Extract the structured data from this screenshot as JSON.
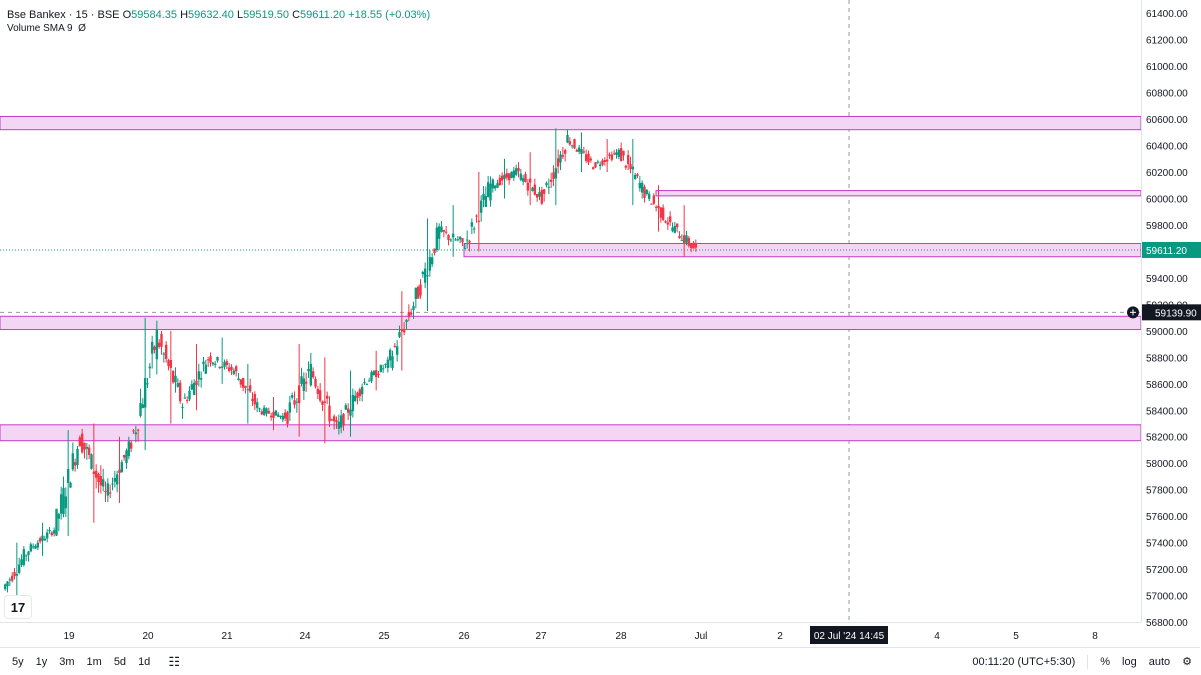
{
  "header": {
    "symbol": "Bse Bankex · 15 · BSE",
    "o_label": "O",
    "o_value": "59584.35",
    "h_label": "H",
    "h_value": "59632.40",
    "l_label": "L",
    "l_value": "59519.50",
    "c_label": "C",
    "c_value": "59611.20",
    "change": "+18.55 (+0.03%)",
    "indicator": "Volume SMA 9",
    "indicator_value": "Ø"
  },
  "colors": {
    "up": "#089981",
    "down": "#f23645",
    "zone_fill": "#f3d6f3",
    "zone_stroke": "#c73cc7",
    "last_price_bg": "#089981",
    "crosshair_bg": "#131722"
  },
  "chart_data": {
    "type": "candlestick",
    "ylim": [
      56800,
      61500
    ],
    "yticks": [
      "61400.00",
      "61200.00",
      "61000.00",
      "60800.00",
      "60600.00",
      "60400.00",
      "60200.00",
      "60000.00",
      "59800.00",
      "59400.00",
      "59200.00",
      "59000.00",
      "58800.00",
      "58600.00",
      "58400.00",
      "58200.00",
      "58000.00",
      "57800.00",
      "57600.00",
      "57400.00",
      "57200.00",
      "57000.00",
      "56800.00"
    ],
    "xticks": [
      "19",
      "20",
      "21",
      "24",
      "25",
      "26",
      "27",
      "28",
      "Jul",
      "2",
      "4",
      "5",
      "8"
    ],
    "last_price": {
      "value": 59611.2,
      "label": "59611.20"
    },
    "crosshair": {
      "price": 59139.9,
      "price_label": "59139.90",
      "time_label": "02 Jul '24   14:45"
    },
    "zones": [
      {
        "from": 60520,
        "to": 60620,
        "start": "left-edge"
      },
      {
        "from": 60020,
        "to": 60060,
        "start": "28"
      },
      {
        "from": 59560,
        "to": 59660,
        "start": "26"
      },
      {
        "from": 59010,
        "to": 59110,
        "start": "left-edge"
      },
      {
        "from": 58170,
        "to": 58290,
        "start": "left-edge"
      }
    ],
    "sessions": [
      {
        "day": "18",
        "open": 57050,
        "close": 57350,
        "low": 56950,
        "high": 57400
      },
      {
        "day": "18b",
        "open": 57350,
        "close": 57500,
        "low": 57300,
        "high": 57550
      },
      {
        "day": "19a",
        "open": 57500,
        "close": 58200,
        "low": 57450,
        "high": 58250
      },
      {
        "day": "19b",
        "open": 58200,
        "close": 57750,
        "low": 57550,
        "high": 58300
      },
      {
        "day": "19c",
        "open": 57750,
        "close": 58150,
        "low": 57700,
        "high": 58200
      },
      {
        "day": "20a",
        "open": 58150,
        "close": 58950,
        "low": 58100,
        "high": 59100
      },
      {
        "day": "20b",
        "open": 58950,
        "close": 58450,
        "low": 58300,
        "high": 59000
      },
      {
        "day": "20c",
        "open": 58450,
        "close": 58800,
        "low": 58400,
        "high": 58900
      },
      {
        "day": "21a",
        "open": 58800,
        "close": 58700,
        "low": 58600,
        "high": 58950
      },
      {
        "day": "21b",
        "open": 58700,
        "close": 58400,
        "low": 58300,
        "high": 58750
      },
      {
        "day": "21c",
        "open": 58400,
        "close": 58350,
        "low": 58250,
        "high": 58500
      },
      {
        "day": "24a",
        "open": 58350,
        "close": 58700,
        "low": 58200,
        "high": 58900
      },
      {
        "day": "24b",
        "open": 58700,
        "close": 58250,
        "low": 58150,
        "high": 58800
      },
      {
        "day": "24c",
        "open": 58250,
        "close": 58600,
        "low": 58200,
        "high": 58700
      },
      {
        "day": "25a",
        "open": 58600,
        "close": 58750,
        "low": 58550,
        "high": 58850
      },
      {
        "day": "25b",
        "open": 58750,
        "close": 59200,
        "low": 58700,
        "high": 59300
      },
      {
        "day": "25c",
        "open": 59200,
        "close": 59750,
        "low": 59150,
        "high": 59850
      },
      {
        "day": "26a",
        "open": 59750,
        "close": 59650,
        "low": 59560,
        "high": 59950
      },
      {
        "day": "26b",
        "open": 59650,
        "close": 60100,
        "low": 59600,
        "high": 60200
      },
      {
        "day": "26c",
        "open": 60100,
        "close": 60200,
        "low": 60000,
        "high": 60300
      },
      {
        "day": "27a",
        "open": 60200,
        "close": 60000,
        "low": 59950,
        "high": 60350
      },
      {
        "day": "27b",
        "open": 60000,
        "close": 60450,
        "low": 59950,
        "high": 60530
      },
      {
        "day": "27c",
        "open": 60450,
        "close": 60250,
        "low": 60200,
        "high": 60500
      },
      {
        "day": "28a",
        "open": 60250,
        "close": 60350,
        "low": 60200,
        "high": 60450
      },
      {
        "day": "28b",
        "open": 60350,
        "close": 60050,
        "low": 59950,
        "high": 60450
      },
      {
        "day": "28c",
        "open": 60050,
        "close": 59800,
        "low": 59750,
        "high": 60100
      },
      {
        "day": "28d",
        "open": 59800,
        "close": 59611,
        "low": 59560,
        "high": 59950
      }
    ]
  },
  "bottom_bar": {
    "ranges": [
      "5y",
      "1y",
      "3m",
      "1m",
      "5d",
      "1d"
    ],
    "clock": "00:11:20 (UTC+5:30)",
    "percent": "%",
    "log": "log",
    "auto": "auto"
  }
}
